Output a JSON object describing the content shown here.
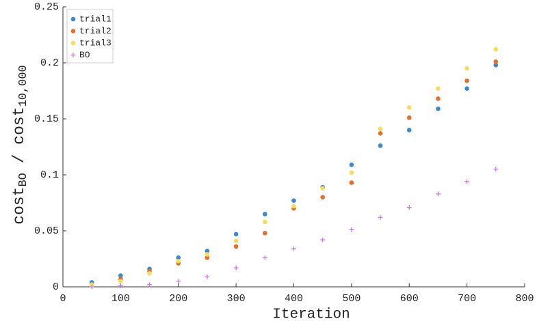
{
  "chart_data": {
    "type": "scatter",
    "xlabel": "Iteration",
    "ylabel": [
      "cost",
      "BO",
      " / cost",
      "10,000"
    ],
    "xlim": [
      0,
      800
    ],
    "xticks": [
      0,
      100,
      200,
      300,
      400,
      500,
      600,
      700,
      800
    ],
    "ylim": [
      0,
      0.25
    ],
    "yticks": [
      0,
      0.05,
      0.1,
      0.15,
      0.2,
      0.25
    ],
    "legend": "top-left",
    "x": [
      50,
      100,
      150,
      200,
      250,
      300,
      350,
      400,
      450,
      500,
      550,
      600,
      650,
      700,
      750
    ],
    "series": [
      {
        "name": "trial1",
        "color": "#3a88d0",
        "marker": "dot",
        "values": [
          0.004,
          0.01,
          0.016,
          0.026,
          0.032,
          0.047,
          0.065,
          0.077,
          0.089,
          0.109,
          0.126,
          0.14,
          0.159,
          0.177,
          0.198
        ]
      },
      {
        "name": "trial2",
        "color": "#e0702a",
        "marker": "dot",
        "values": [
          0.002,
          0.007,
          0.014,
          0.021,
          0.026,
          0.036,
          0.048,
          0.07,
          0.08,
          0.093,
          0.137,
          0.151,
          0.168,
          0.184,
          0.201
        ]
      },
      {
        "name": "trial3",
        "color": "#f7dc5b",
        "marker": "dot",
        "values": [
          0.002,
          0.005,
          0.012,
          0.023,
          0.029,
          0.041,
          0.058,
          0.072,
          0.088,
          0.102,
          0.141,
          0.16,
          0.177,
          0.195,
          0.212
        ]
      },
      {
        "name": "BO",
        "color": "#c56ee6",
        "marker": "plus",
        "values": [
          0.0,
          0.001,
          0.002,
          0.005,
          0.009,
          0.017,
          0.026,
          0.034,
          0.042,
          0.051,
          0.062,
          0.071,
          0.083,
          0.094,
          0.105
        ]
      }
    ]
  }
}
